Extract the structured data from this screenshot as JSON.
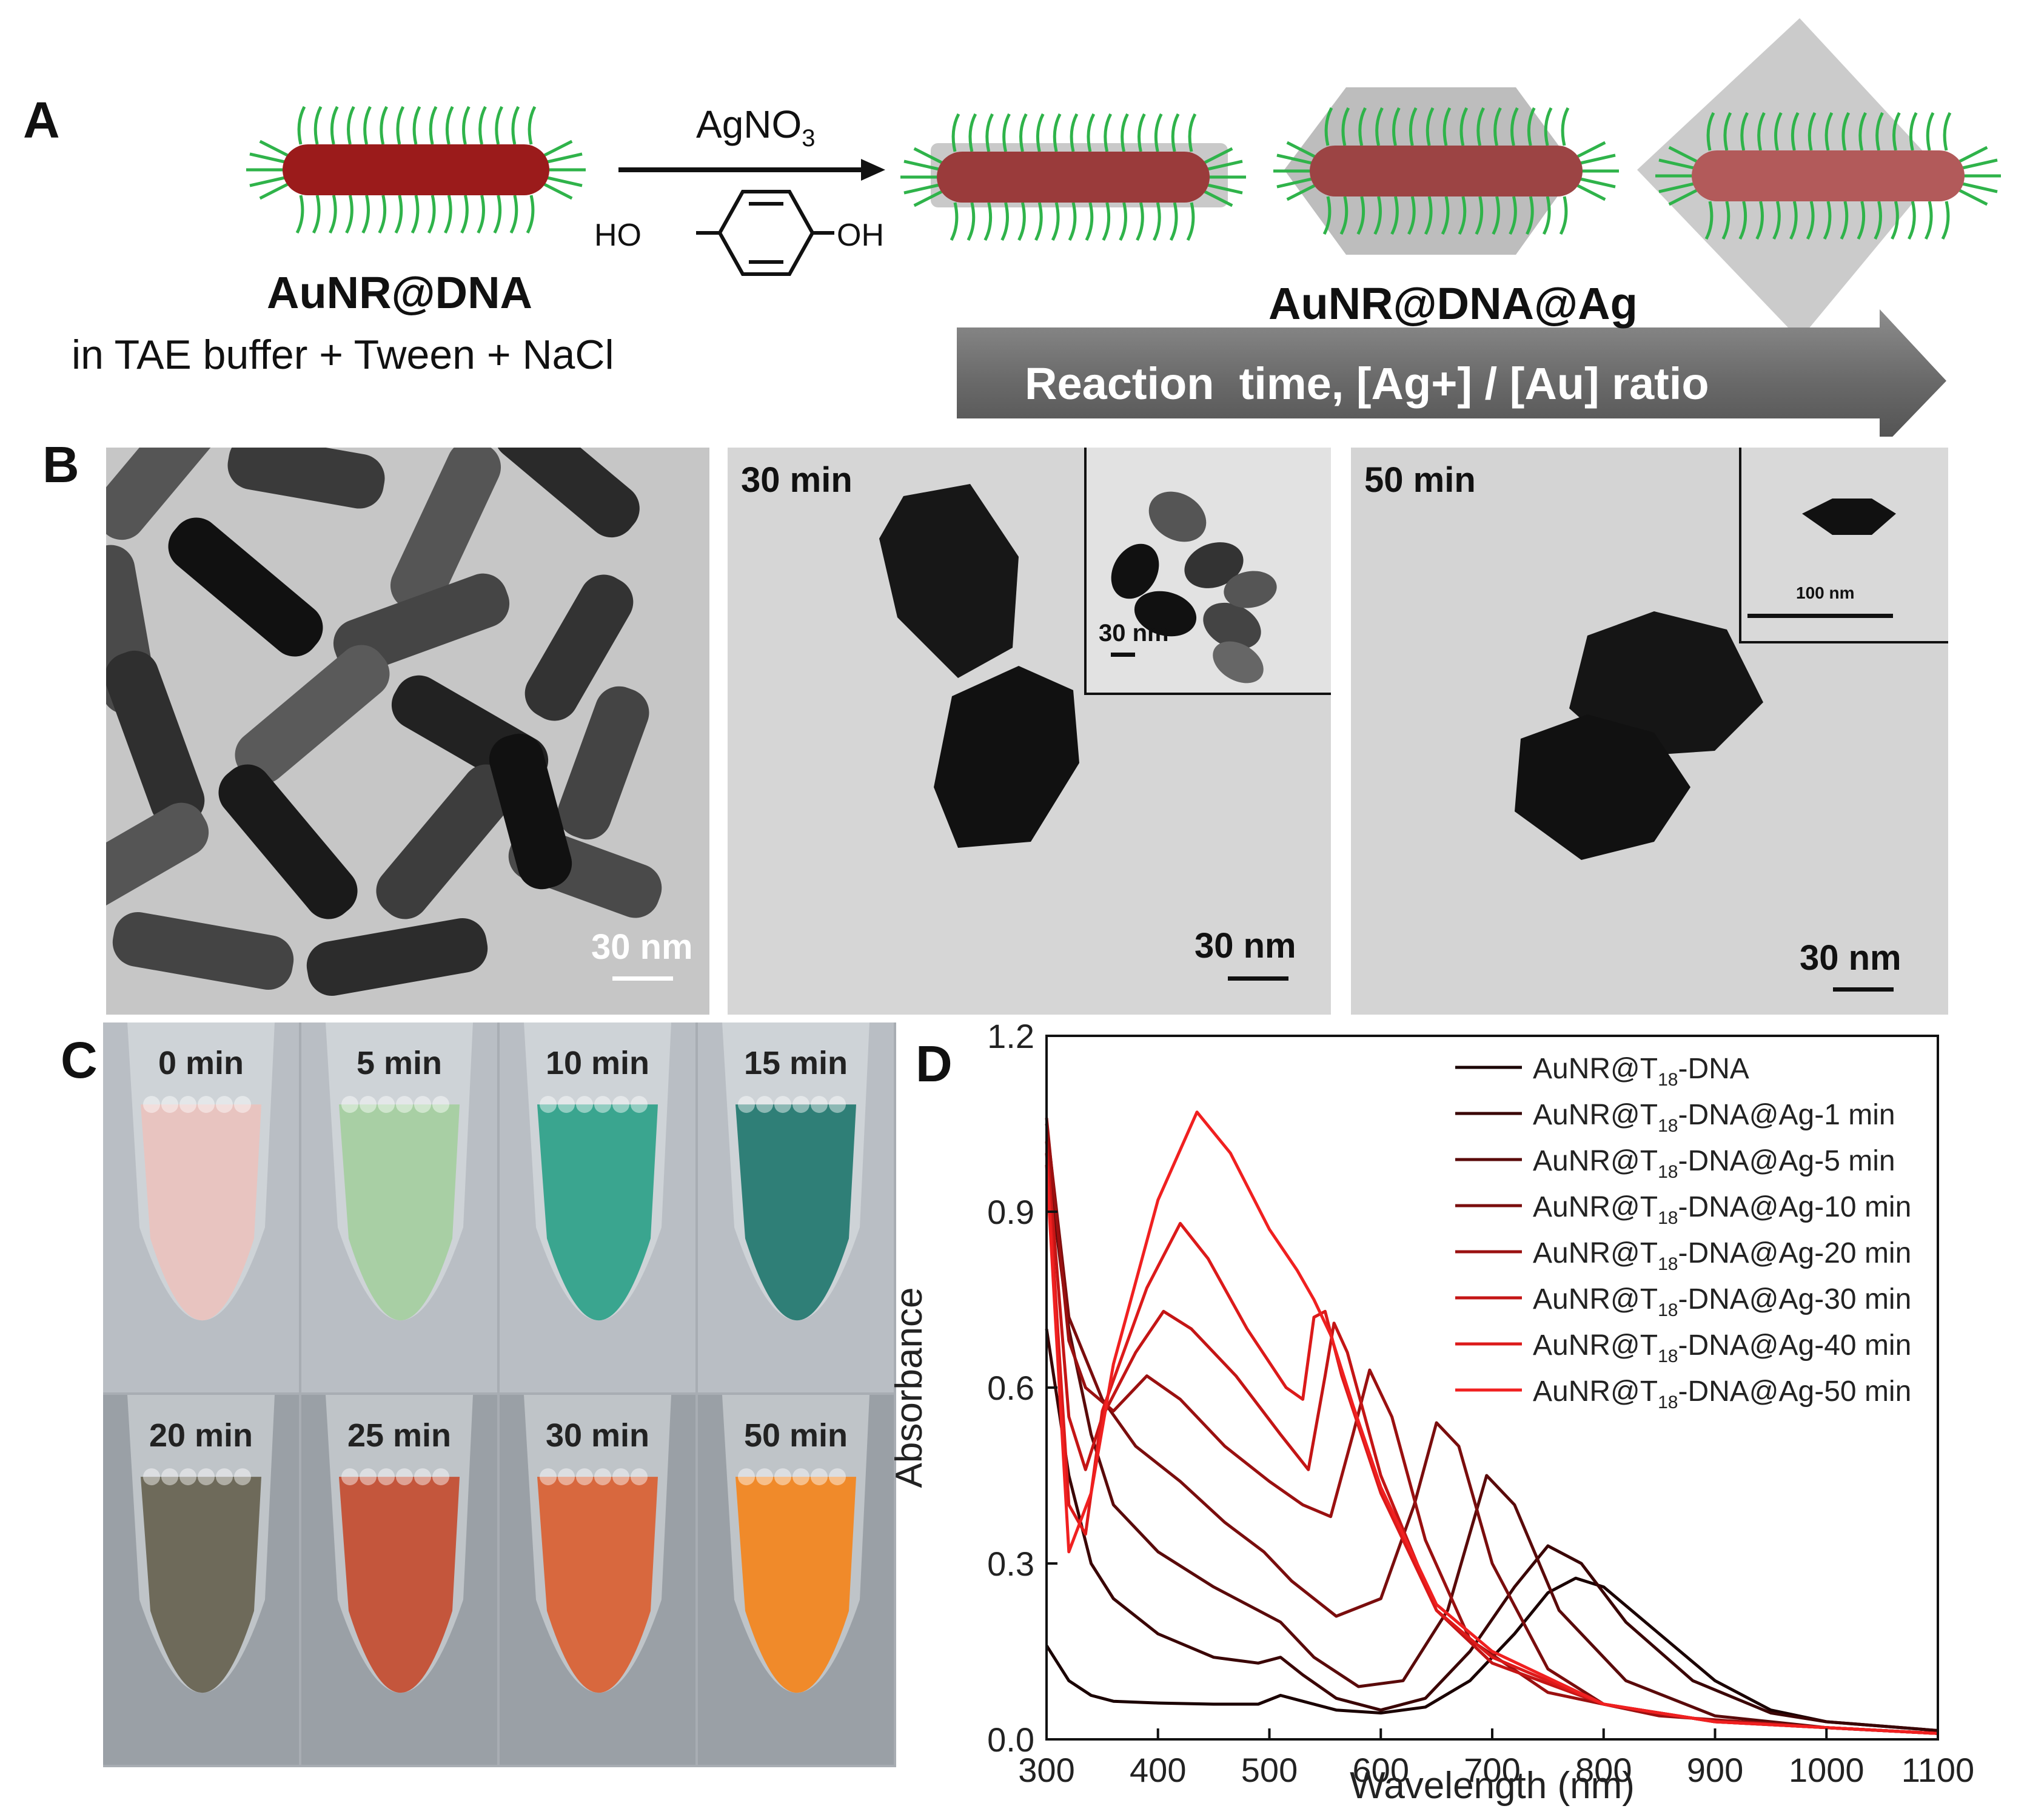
{
  "panels": {
    "A": {
      "label": "A",
      "start_name": "AuNR@DNA",
      "start_condition": "in TAE buffer + Tween + NaCl",
      "reagent": "AgNO",
      "reagent_sub": "3",
      "reducer_left": "HO",
      "reducer_right": "OH",
      "product_name": "AuNR@DNA@Ag",
      "arrow_text": "Reaction  time, [Ag+] / [Au] ratio",
      "colors": {
        "rod": "#9b1b1b",
        "dna": "#2fb34a",
        "shell": "#bdbdbd"
      }
    },
    "B": {
      "label": "B",
      "images": [
        {
          "time": "",
          "scale": "30 nm"
        },
        {
          "time": "30 min",
          "scale": "30 nm",
          "inset_scale": "30 nm"
        },
        {
          "time": "50 min",
          "scale": "30 nm",
          "inset_scale": "100 nm"
        }
      ]
    },
    "C": {
      "label": "C",
      "tubes": [
        {
          "time": "0 min",
          "color": "#e8c4c0"
        },
        {
          "time": "5 min",
          "color": "#a8cfa4"
        },
        {
          "time": "10 min",
          "color": "#3aa58f"
        },
        {
          "time": "15 min",
          "color": "#2f7f77"
        },
        {
          "time": "20 min",
          "color": "#6e6a5a"
        },
        {
          "time": "25 min",
          "color": "#c4563c"
        },
        {
          "time": "30 min",
          "color": "#d8683e"
        },
        {
          "time": "50 min",
          "color": "#f08a2a"
        }
      ]
    },
    "D": {
      "label": "D",
      "chart_data": {
        "type": "line",
        "xlabel": "Wavelength (nm)",
        "ylabel": "Absorbance",
        "xlim": [
          300,
          1100
        ],
        "ylim": [
          0,
          1.2
        ],
        "xticks": [
          300,
          400,
          500,
          600,
          700,
          800,
          900,
          1000,
          1100
        ],
        "yticks": [
          0.0,
          0.3,
          0.6,
          0.9,
          1.2
        ],
        "ytick_labels": [
          "0.0",
          "0.3",
          "0.6",
          "0.9",
          "1.2"
        ],
        "legend_position": "top-right",
        "series": [
          {
            "name": "AuNR@T18-DNA",
            "label_a": "AuNR@T",
            "label_sub": "18",
            "label_b": "-DNA",
            "color": "#1a0000",
            "points": [
              [
                300,
                0.16
              ],
              [
                320,
                0.1
              ],
              [
                340,
                0.075
              ],
              [
                360,
                0.065
              ],
              [
                400,
                0.062
              ],
              [
                450,
                0.06
              ],
              [
                490,
                0.06
              ],
              [
                510,
                0.075
              ],
              [
                530,
                0.065
              ],
              [
                560,
                0.05
              ],
              [
                600,
                0.045
              ],
              [
                640,
                0.055
              ],
              [
                680,
                0.1
              ],
              [
                720,
                0.18
              ],
              [
                750,
                0.25
              ],
              [
                775,
                0.275
              ],
              [
                800,
                0.26
              ],
              [
                850,
                0.18
              ],
              [
                900,
                0.1
              ],
              [
                950,
                0.05
              ],
              [
                1000,
                0.03
              ],
              [
                1100,
                0.015
              ]
            ]
          },
          {
            "name": "AuNR@T18-DNA@Ag-1 min",
            "label_a": "AuNR@T",
            "label_sub": "18",
            "label_b": "-DNA@Ag-1 min",
            "color": "#3a0505",
            "points": [
              [
                300,
                0.7
              ],
              [
                320,
                0.45
              ],
              [
                340,
                0.3
              ],
              [
                360,
                0.24
              ],
              [
                400,
                0.18
              ],
              [
                450,
                0.14
              ],
              [
                490,
                0.13
              ],
              [
                510,
                0.14
              ],
              [
                530,
                0.11
              ],
              [
                560,
                0.07
              ],
              [
                600,
                0.05
              ],
              [
                640,
                0.07
              ],
              [
                680,
                0.15
              ],
              [
                720,
                0.26
              ],
              [
                750,
                0.33
              ],
              [
                780,
                0.3
              ],
              [
                820,
                0.2
              ],
              [
                880,
                0.1
              ],
              [
                950,
                0.045
              ],
              [
                1000,
                0.03
              ],
              [
                1100,
                0.015
              ]
            ]
          },
          {
            "name": "AuNR@T18-DNA@Ag-5 min",
            "label_a": "AuNR@T",
            "label_sub": "18",
            "label_b": "-DNA@Ag-5 min",
            "color": "#5a0a0a",
            "points": [
              [
                300,
                1.0
              ],
              [
                320,
                0.7
              ],
              [
                340,
                0.52
              ],
              [
                360,
                0.4
              ],
              [
                400,
                0.32
              ],
              [
                450,
                0.26
              ],
              [
                490,
                0.22
              ],
              [
                510,
                0.2
              ],
              [
                540,
                0.14
              ],
              [
                580,
                0.09
              ],
              [
                620,
                0.1
              ],
              [
                660,
                0.22
              ],
              [
                695,
                0.45
              ],
              [
                720,
                0.4
              ],
              [
                760,
                0.22
              ],
              [
                820,
                0.1
              ],
              [
                900,
                0.04
              ],
              [
                1000,
                0.02
              ],
              [
                1100,
                0.01
              ]
            ]
          },
          {
            "name": "AuNR@T18-DNA@Ag-10 min",
            "label_a": "AuNR@T",
            "label_sub": "18",
            "label_b": "-DNA@Ag-10 min",
            "color": "#7a0d0d",
            "points": [
              [
                300,
                1.05
              ],
              [
                320,
                0.72
              ],
              [
                350,
                0.58
              ],
              [
                380,
                0.5
              ],
              [
                420,
                0.44
              ],
              [
                460,
                0.37
              ],
              [
                495,
                0.32
              ],
              [
                520,
                0.27
              ],
              [
                560,
                0.21
              ],
              [
                600,
                0.24
              ],
              [
                630,
                0.4
              ],
              [
                650,
                0.54
              ],
              [
                670,
                0.5
              ],
              [
                700,
                0.3
              ],
              [
                750,
                0.12
              ],
              [
                800,
                0.06
              ],
              [
                900,
                0.03
              ],
              [
                1000,
                0.02
              ],
              [
                1100,
                0.01
              ]
            ]
          },
          {
            "name": "AuNR@T18-DNA@Ag-20 min",
            "label_a": "AuNR@T",
            "label_sub": "18",
            "label_b": "-DNA@Ag-20 min",
            "color": "#9a1010",
            "points": [
              [
                300,
                1.06
              ],
              [
                320,
                0.68
              ],
              [
                335,
                0.6
              ],
              [
                360,
                0.56
              ],
              [
                390,
                0.62
              ],
              [
                420,
                0.58
              ],
              [
                460,
                0.5
              ],
              [
                500,
                0.44
              ],
              [
                530,
                0.4
              ],
              [
                555,
                0.38
              ],
              [
                575,
                0.52
              ],
              [
                590,
                0.63
              ],
              [
                610,
                0.55
              ],
              [
                640,
                0.34
              ],
              [
                680,
                0.17
              ],
              [
                750,
                0.08
              ],
              [
                850,
                0.04
              ],
              [
                1000,
                0.02
              ],
              [
                1100,
                0.01
              ]
            ]
          },
          {
            "name": "AuNR@T18-DNA@Ag-30 min",
            "label_a": "AuNR@T",
            "label_sub": "18",
            "label_b": "-DNA@Ag-30 min",
            "color": "#c41515",
            "points": [
              [
                300,
                1.02
              ],
              [
                320,
                0.55
              ],
              [
                335,
                0.46
              ],
              [
                350,
                0.55
              ],
              [
                380,
                0.66
              ],
              [
                405,
                0.73
              ],
              [
                430,
                0.7
              ],
              [
                470,
                0.62
              ],
              [
                510,
                0.52
              ],
              [
                535,
                0.46
              ],
              [
                550,
                0.62
              ],
              [
                558,
                0.71
              ],
              [
                570,
                0.66
              ],
              [
                600,
                0.45
              ],
              [
                650,
                0.22
              ],
              [
                700,
                0.13
              ],
              [
                800,
                0.06
              ],
              [
                900,
                0.03
              ],
              [
                1100,
                0.01
              ]
            ]
          },
          {
            "name": "AuNR@T18-DNA@Ag-40 min",
            "label_a": "AuNR@T",
            "label_sub": "18",
            "label_b": "-DNA@Ag-40 min",
            "color": "#dc1a1a",
            "points": [
              [
                300,
                1.0
              ],
              [
                320,
                0.4
              ],
              [
                335,
                0.35
              ],
              [
                350,
                0.56
              ],
              [
                390,
                0.77
              ],
              [
                420,
                0.88
              ],
              [
                445,
                0.82
              ],
              [
                480,
                0.7
              ],
              [
                515,
                0.6
              ],
              [
                530,
                0.58
              ],
              [
                540,
                0.72
              ],
              [
                550,
                0.73
              ],
              [
                565,
                0.62
              ],
              [
                600,
                0.42
              ],
              [
                650,
                0.22
              ],
              [
                700,
                0.14
              ],
              [
                800,
                0.06
              ],
              [
                900,
                0.03
              ],
              [
                1100,
                0.01
              ]
            ]
          },
          {
            "name": "AuNR@T18-DNA@Ag-50 min",
            "label_a": "AuNR@T",
            "label_sub": "18",
            "label_b": "-DNA@Ag-50 min",
            "color": "#f02020",
            "points": [
              [
                300,
                0.98
              ],
              [
                320,
                0.32
              ],
              [
                340,
                0.42
              ],
              [
                360,
                0.64
              ],
              [
                400,
                0.92
              ],
              [
                435,
                1.07
              ],
              [
                465,
                1.0
              ],
              [
                500,
                0.87
              ],
              [
                525,
                0.8
              ],
              [
                540,
                0.75
              ],
              [
                555,
                0.69
              ],
              [
                575,
                0.57
              ],
              [
                600,
                0.43
              ],
              [
                650,
                0.23
              ],
              [
                700,
                0.15
              ],
              [
                800,
                0.06
              ],
              [
                900,
                0.03
              ],
              [
                1100,
                0.01
              ]
            ]
          }
        ]
      }
    }
  }
}
